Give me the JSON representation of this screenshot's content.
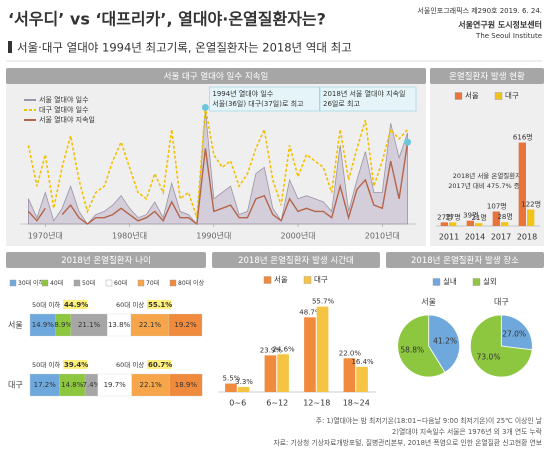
{
  "header": {
    "title": "‘서우디’ vs ‘대프리카’, 열대야·온열질환자는?",
    "issue": "서울인포그래픽스 제290호 2019. 6. 24.",
    "publisher": "서울연구원 도시정보센터",
    "publisher_en": "The Seoul Institute",
    "subtitle": "서울·대구 열대야 1994년 최고기록, 온열질환자는 2018년 역대 최고"
  },
  "chart_data": [
    {
      "type": "line",
      "title": "서울 대구 열대야 일수 지속일",
      "x": [
        1973,
        1974,
        1975,
        1976,
        1977,
        1978,
        1979,
        1980,
        1981,
        1982,
        1983,
        1984,
        1985,
        1986,
        1987,
        1988,
        1989,
        1990,
        1991,
        1992,
        1993,
        1994,
        1995,
        1996,
        1997,
        1998,
        1999,
        2000,
        2001,
        2002,
        2003,
        2004,
        2005,
        2006,
        2007,
        2008,
        2009,
        2010,
        2011,
        2012,
        2013,
        2014,
        2015,
        2016,
        2017,
        2018
      ],
      "series": [
        {
          "name": "서울 열대야 일수",
          "color": "#9b93a6",
          "style": "area",
          "values": [
            8,
            2,
            10,
            1,
            5,
            12,
            4,
            0,
            3,
            4,
            6,
            9,
            5,
            2,
            3,
            7,
            2,
            13,
            4,
            3,
            0,
            36,
            8,
            10,
            12,
            3,
            4,
            16,
            18,
            5,
            1,
            14,
            8,
            9,
            8,
            7,
            4,
            25,
            4,
            14,
            23,
            10,
            10,
            32,
            21,
            29
          ]
        },
        {
          "name": "대구 열대야 일수",
          "color": "#f2c000",
          "style": "dashed",
          "values": [
            25,
            12,
            22,
            5,
            18,
            28,
            14,
            4,
            10,
            12,
            20,
            26,
            18,
            10,
            8,
            16,
            10,
            30,
            8,
            10,
            2,
            37,
            22,
            18,
            20,
            12,
            16,
            24,
            30,
            14,
            6,
            25,
            15,
            22,
            20,
            18,
            10,
            30,
            14,
            24,
            33,
            12,
            20,
            30,
            27,
            30
          ]
        },
        {
          "name": "서울 열대야 지속일",
          "color": "#b5654a",
          "style": "line",
          "values": [
            4,
            1,
            5,
            null,
            3,
            6,
            2,
            0,
            2,
            2,
            3,
            5,
            3,
            1,
            2,
            4,
            1,
            7,
            2,
            2,
            0,
            24,
            4,
            5,
            6,
            2,
            2,
            8,
            9,
            3,
            1,
            8,
            4,
            5,
            4,
            4,
            2,
            12,
            2,
            11,
            14,
            6,
            5,
            20,
            8,
            26
          ]
        }
      ],
      "xlim": [
        1972,
        2019
      ],
      "ylim": [
        0,
        40
      ],
      "xticks": [
        {
          "value": 1975,
          "label": "1970년대"
        },
        {
          "value": 1985,
          "label": "1980년대"
        },
        {
          "value": 1995,
          "label": "1990년대"
        },
        {
          "value": 2005,
          "label": "2000년대"
        },
        {
          "value": 2015,
          "label": "2010년대"
        }
      ],
      "annotations": [
        [
          "1994년 열대야 일수",
          "서울(36일) 대구(37일)로 최고"
        ],
        [
          "2018년 서울 열대야 지속일",
          "26일로 최고"
        ]
      ]
    },
    {
      "type": "bar",
      "title": "온열질환자 발생 현황",
      "categories": [
        "2011",
        "2014",
        "2017",
        "2018"
      ],
      "series": [
        {
          "name": "서울",
          "color": "#e8743b",
          "values": [
            27,
            39,
            107,
            616
          ],
          "value_labels": [
            "27명",
            "39명",
            "107명",
            "616명"
          ]
        },
        {
          "name": "대구",
          "color": "#f2c318",
          "values": [
            27,
            21,
            28,
            122
          ],
          "value_labels": [
            "27명",
            "21명",
            "28명",
            "122명"
          ]
        }
      ],
      "ylim": [
        0,
        650
      ],
      "annotation": [
        "2018년 서울 온열질환자",
        "2017년 대비 475.7% 증가"
      ]
    },
    {
      "type": "stacked-bar",
      "title": "2018년 온열질환자 나이",
      "categories": [
        "서울",
        "대구"
      ],
      "series": [
        {
          "name": "30대 이하",
          "color": "#6fa8dc",
          "values": [
            14.9,
            17.2
          ],
          "value_labels": [
            "14.9%",
            "17.2%"
          ]
        },
        {
          "name": "40대",
          "color": "#8dc63f",
          "values": [
            8.9,
            14.8
          ],
          "value_labels": [
            "8.9%",
            "14.8%"
          ]
        },
        {
          "name": "50대",
          "color": "#a6a6a6",
          "values": [
            21.1,
            7.4
          ],
          "value_labels": [
            "21.1%",
            "7.4%"
          ]
        },
        {
          "name": "60대",
          "color": "#ffffff",
          "values": [
            13.8,
            19.7
          ],
          "value_labels": [
            "13.8%",
            "19.7%"
          ]
        },
        {
          "name": "70대",
          "color": "#f6a54a",
          "values": [
            22.1,
            22.1
          ],
          "value_labels": [
            "22.1%",
            "22.1%"
          ]
        },
        {
          "name": "80대 이상",
          "color": "#f08a3c",
          "values": [
            19.2,
            18.9
          ],
          "value_labels": [
            "19.2%",
            "18.9%"
          ]
        }
      ],
      "xlim": [
        0,
        100
      ],
      "groups": [
        [
          {
            "name": "50대 이하",
            "value": 44.9,
            "value_label": "44.9%"
          },
          {
            "name": "60대 이상",
            "value": 55.1,
            "value_label": "55.1%"
          }
        ],
        [
          {
            "name": "50대 이하",
            "value": 39.4,
            "value_label": "39.4%"
          },
          {
            "name": "60대 이상",
            "value": 60.7,
            "value_label": "60.7%"
          }
        ]
      ]
    },
    {
      "type": "bar",
      "title": "2018년 온열질환자 발생 시간대",
      "categories": [
        "0~6",
        "6~12",
        "12~18",
        "18~24"
      ],
      "series": [
        {
          "name": "서울",
          "color": "#f08a3c",
          "values": [
            5.5,
            23.9,
            48.7,
            22.0
          ],
          "value_labels": [
            "5.5%",
            "23.9%",
            "48.7%",
            "22.0%"
          ]
        },
        {
          "name": "대구",
          "color": "#f6c443",
          "values": [
            3.3,
            24.6,
            55.7,
            16.4
          ],
          "value_labels": [
            "3.3%",
            "24.6%",
            "55.7%",
            "16.4%"
          ]
        }
      ],
      "ylim": [
        0,
        60
      ]
    },
    {
      "type": "pie",
      "title": "2018년 온열질환자 발생 장소",
      "categories": [
        "실내",
        "실외"
      ],
      "colors": [
        "#6fa8dc",
        "#8dc63f"
      ],
      "pies": [
        {
          "name": "서울",
          "values": [
            41.2,
            58.8
          ],
          "value_labels": [
            "41.2%",
            "58.8%"
          ]
        },
        {
          "name": "대구",
          "values": [
            27.0,
            73.0
          ],
          "value_labels": [
            "27.0%",
            "73.0%"
          ]
        }
      ]
    }
  ],
  "footnotes": [
    "주: 1)열대야는 밤 최저기온(18:01~다음날 9:00 최저기온)이 25℃ 이상인 날",
    "2)열대야 지속일수 서울은 1976년 외 3개 연도 누락",
    "자료: 기상청 기상자료개방포털, 질병관리본부, 2018년 폭염으로 인한 온열질환 신고현황 연보"
  ]
}
